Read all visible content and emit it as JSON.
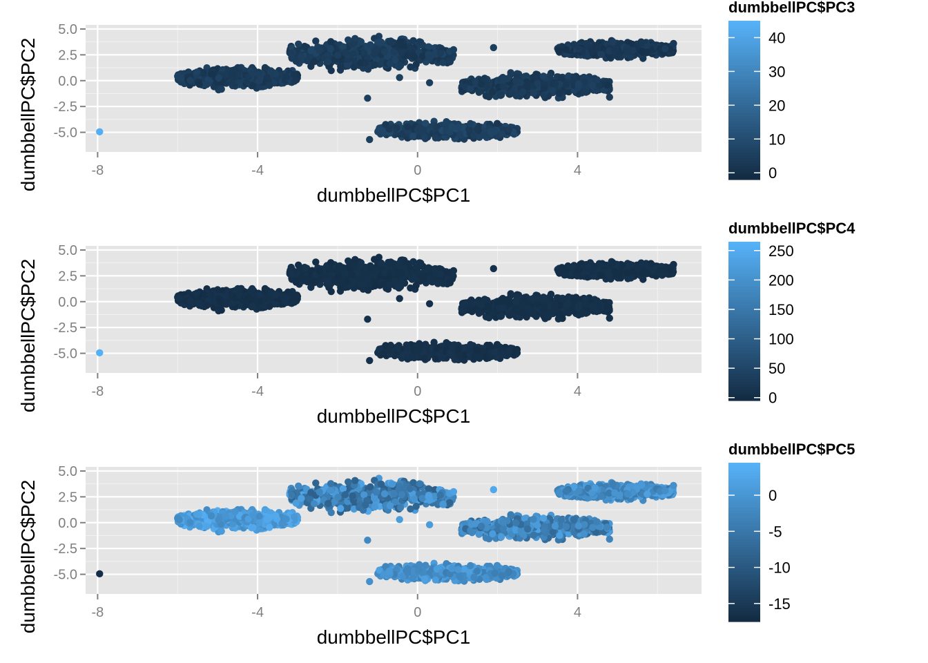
{
  "colors": {
    "panel_bg": "#E5E5E5",
    "grid_major": "#FFFFFF",
    "grid_minor": "#F2F2F2",
    "tick": "#7F7F7F",
    "low": "#132B43",
    "high": "#56B1F7"
  },
  "chart_data": [
    {
      "type": "scatter",
      "xlabel": "dumbbellPC$PC1",
      "ylabel": "dumbbellPC$PC2",
      "xlim": [
        -8.3,
        7.1
      ],
      "ylim": [
        -6.9,
        5.4
      ],
      "x_ticks": [
        {
          "v": -8,
          "label": "-8"
        },
        {
          "v": -4,
          "label": "-4"
        },
        {
          "v": 0,
          "label": "0"
        },
        {
          "v": 4,
          "label": "4"
        }
      ],
      "y_ticks": [
        {
          "v": 5,
          "label": "5.0"
        },
        {
          "v": 2.5,
          "label": "2.5"
        },
        {
          "v": 0,
          "label": "0.0"
        },
        {
          "v": -2.5,
          "label": "-2.5"
        },
        {
          "v": -5,
          "label": "-5.0"
        }
      ],
      "grid": true,
      "color_scale": {
        "title": "dumbbellPC$PC3",
        "min": -2,
        "max": 45,
        "ticks": [
          {
            "v": 40,
            "label": "40"
          },
          {
            "v": 30,
            "label": "30"
          },
          {
            "v": 20,
            "label": "20"
          },
          {
            "v": 10,
            "label": "10"
          },
          {
            "v": 0,
            "label": "0"
          }
        ]
      },
      "clusters": [
        {
          "x_range": [
            -6.0,
            -3.0
          ],
          "y_center": 0.3,
          "y_spread": 1.4,
          "color_value_range": [
            1,
            6
          ]
        },
        {
          "x_range": [
            -3.2,
            0.9
          ],
          "y_center": 2.6,
          "y_spread": 2.2,
          "color_value_range": [
            1,
            7
          ]
        },
        {
          "x_range": [
            -1.0,
            2.5
          ],
          "y_center": -4.8,
          "y_spread": 1.2,
          "color_value_range": [
            2,
            8
          ]
        },
        {
          "x_range": [
            1.1,
            4.8
          ],
          "y_center": -0.5,
          "y_spread": 1.6,
          "color_value_range": [
            1,
            6
          ]
        },
        {
          "x_range": [
            3.5,
            6.4
          ],
          "y_center": 3.0,
          "y_spread": 1.1,
          "color_value_range": [
            0,
            5
          ]
        }
      ],
      "points": [
        {
          "x": -7.95,
          "y": -4.95,
          "c": 44
        },
        {
          "x": -0.45,
          "y": 0.3,
          "c": 5
        },
        {
          "x": -1.25,
          "y": -1.7,
          "c": 5
        },
        {
          "x": 0.9,
          "y": 3.0,
          "c": 5
        },
        {
          "x": 1.9,
          "y": 3.2,
          "c": 5
        },
        {
          "x": 4.8,
          "y": -1.6,
          "c": 4
        },
        {
          "x": 6.4,
          "y": 3.6,
          "c": 3
        },
        {
          "x": 0.3,
          "y": -0.2,
          "c": 5
        },
        {
          "x": -1.2,
          "y": -5.7,
          "c": 5
        }
      ]
    },
    {
      "type": "scatter",
      "xlabel": "dumbbellPC$PC1",
      "ylabel": "dumbbellPC$PC2",
      "xlim": [
        -8.3,
        7.1
      ],
      "ylim": [
        -6.9,
        5.4
      ],
      "x_ticks": [
        {
          "v": -8,
          "label": "-8"
        },
        {
          "v": -4,
          "label": "-4"
        },
        {
          "v": 0,
          "label": "0"
        },
        {
          "v": 4,
          "label": "4"
        }
      ],
      "y_ticks": [
        {
          "v": 5,
          "label": "5.0"
        },
        {
          "v": 2.5,
          "label": "2.5"
        },
        {
          "v": 0,
          "label": "0.0"
        },
        {
          "v": -2.5,
          "label": "-2.5"
        },
        {
          "v": -5,
          "label": "-5.0"
        }
      ],
      "grid": true,
      "color_scale": {
        "title": "dumbbellPC$PC4",
        "min": -5,
        "max": 265,
        "ticks": [
          {
            "v": 250,
            "label": "250"
          },
          {
            "v": 200,
            "label": "200"
          },
          {
            "v": 150,
            "label": "150"
          },
          {
            "v": 100,
            "label": "100"
          },
          {
            "v": 50,
            "label": "50"
          },
          {
            "v": 0,
            "label": "0"
          }
        ]
      },
      "clusters": [
        {
          "x_range": [
            -6.0,
            -3.0
          ],
          "y_center": 0.3,
          "y_spread": 1.4,
          "color_value_range": [
            0,
            10
          ]
        },
        {
          "x_range": [
            -3.2,
            0.9
          ],
          "y_center": 2.6,
          "y_spread": 2.2,
          "color_value_range": [
            0,
            10
          ]
        },
        {
          "x_range": [
            -1.0,
            2.5
          ],
          "y_center": -4.8,
          "y_spread": 1.2,
          "color_value_range": [
            0,
            12
          ]
        },
        {
          "x_range": [
            1.1,
            4.8
          ],
          "y_center": -0.5,
          "y_spread": 1.6,
          "color_value_range": [
            0,
            10
          ]
        },
        {
          "x_range": [
            3.5,
            6.4
          ],
          "y_center": 3.0,
          "y_spread": 1.1,
          "color_value_range": [
            0,
            10
          ]
        }
      ],
      "points": [
        {
          "x": -7.95,
          "y": -4.95,
          "c": 262
        },
        {
          "x": -0.45,
          "y": 0.3,
          "c": 5
        },
        {
          "x": -1.25,
          "y": -1.7,
          "c": 5
        },
        {
          "x": 0.9,
          "y": 3.0,
          "c": 5
        },
        {
          "x": 1.9,
          "y": 3.2,
          "c": 5
        },
        {
          "x": 4.8,
          "y": -1.6,
          "c": 5
        },
        {
          "x": 6.4,
          "y": 3.6,
          "c": 5
        },
        {
          "x": 0.3,
          "y": -0.2,
          "c": 5
        },
        {
          "x": -1.2,
          "y": -5.7,
          "c": 5
        }
      ]
    },
    {
      "type": "scatter",
      "xlabel": "dumbbellPC$PC1",
      "ylabel": "dumbbellPC$PC2",
      "xlim": [
        -8.3,
        7.1
      ],
      "ylim": [
        -6.9,
        5.4
      ],
      "x_ticks": [
        {
          "v": -8,
          "label": "-8"
        },
        {
          "v": -4,
          "label": "-4"
        },
        {
          "v": 0,
          "label": "0"
        },
        {
          "v": 4,
          "label": "4"
        }
      ],
      "y_ticks": [
        {
          "v": 5,
          "label": "5.0"
        },
        {
          "v": 2.5,
          "label": "2.5"
        },
        {
          "v": 0,
          "label": "0.0"
        },
        {
          "v": -2.5,
          "label": "-2.5"
        },
        {
          "v": -5,
          "label": "-5.0"
        }
      ],
      "grid": true,
      "color_scale": {
        "title": "dumbbellPC$PC5",
        "min": -17.5,
        "max": 4.5,
        "ticks": [
          {
            "v": 0,
            "label": "0"
          },
          {
            "v": -5,
            "label": "-5"
          },
          {
            "v": -10,
            "label": "-10"
          },
          {
            "v": -15,
            "label": "-15"
          }
        ]
      },
      "clusters": [
        {
          "x_range": [
            -6.0,
            -3.0
          ],
          "y_center": 0.3,
          "y_spread": 1.4,
          "color_value_range": [
            -2,
            4
          ]
        },
        {
          "x_range": [
            -3.2,
            0.9
          ],
          "y_center": 2.6,
          "y_spread": 2.2,
          "color_value_range": [
            -9,
            3
          ]
        },
        {
          "x_range": [
            -1.0,
            2.5
          ],
          "y_center": -4.8,
          "y_spread": 1.2,
          "color_value_range": [
            -4,
            2
          ]
        },
        {
          "x_range": [
            1.1,
            4.8
          ],
          "y_center": -0.5,
          "y_spread": 1.6,
          "color_value_range": [
            -8,
            2
          ]
        },
        {
          "x_range": [
            3.5,
            6.4
          ],
          "y_center": 3.0,
          "y_spread": 1.1,
          "color_value_range": [
            -5,
            2
          ]
        }
      ],
      "points": [
        {
          "x": -7.95,
          "y": -4.95,
          "c": -17
        },
        {
          "x": -0.45,
          "y": 0.3,
          "c": 1
        },
        {
          "x": -1.25,
          "y": -1.7,
          "c": -2
        },
        {
          "x": 0.9,
          "y": 3.0,
          "c": 2
        },
        {
          "x": 1.9,
          "y": 3.2,
          "c": 3
        },
        {
          "x": 4.8,
          "y": -1.6,
          "c": -3
        },
        {
          "x": 6.4,
          "y": 3.6,
          "c": -1
        },
        {
          "x": 0.3,
          "y": -0.2,
          "c": 1
        },
        {
          "x": -1.2,
          "y": -5.7,
          "c": -1
        }
      ]
    }
  ]
}
